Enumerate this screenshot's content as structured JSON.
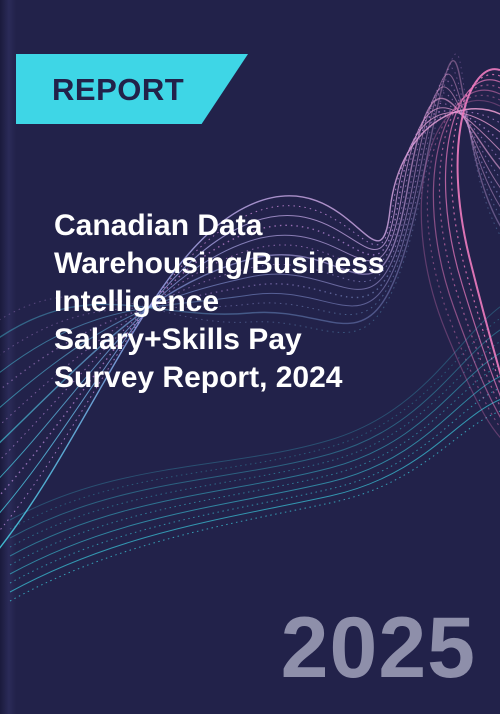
{
  "cover": {
    "badge_label": "REPORT",
    "title_lines": [
      "Canadian Data",
      "Warehousing/Business",
      "Intelligence",
      "Salary+Skills Pay",
      "Survey Report, 2024"
    ],
    "year": "2025"
  },
  "colors": {
    "background": "#22224a",
    "badge": "#3ed6e6",
    "badge_text": "#22224a",
    "title_text": "#ffffff",
    "year_text": "#8e8faa",
    "wave_pink": "#f07cc0",
    "wave_cyan": "#3ed6e6"
  }
}
